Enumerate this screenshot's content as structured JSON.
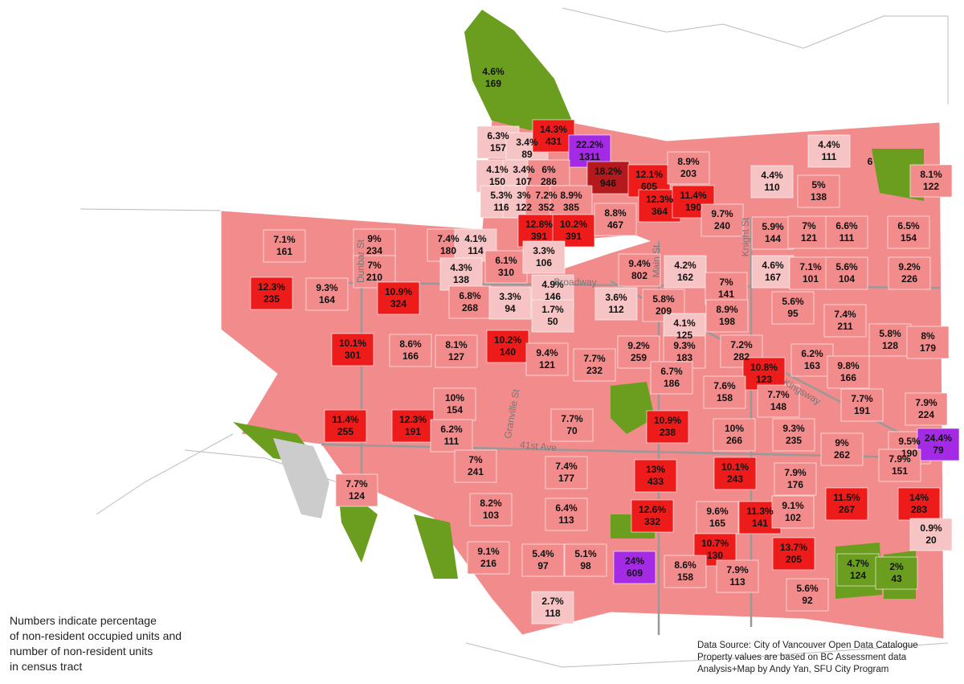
{
  "tracts": [
    {
      "pct": "4.6%",
      "units": 169,
      "color": "#6b9e1e"
    },
    {
      "pct": "6.3%",
      "units": 157,
      "color": "#f6c4c4"
    },
    {
      "pct": "3.4%",
      "units": 89,
      "color": "#f6c4c4"
    },
    {
      "pct": "14.3%",
      "units": 431,
      "color": "#ee1b1b"
    },
    {
      "pct": "22.2%",
      "units": 1311,
      "color": "#a52ae6"
    },
    {
      "pct": "4.1%",
      "units": 150,
      "color": "#f6c4c4"
    },
    {
      "pct": "3.4%",
      "units": 107,
      "color": "#f6c4c4"
    },
    {
      "pct": "6%",
      "units": 286,
      "color": "#f28b8b"
    },
    {
      "pct": "18.2%",
      "units": 946,
      "color": "#b3191d"
    },
    {
      "pct": "12.1%",
      "units": 605,
      "color": "#ee1b1b"
    },
    {
      "pct": "5.3%",
      "units": 116,
      "color": "#f6c4c4"
    },
    {
      "pct": "3%",
      "units": 122,
      "color": "#f6c4c4"
    },
    {
      "pct": "7.2%",
      "units": 352,
      "color": "#f28b8b"
    },
    {
      "pct": "8.9%",
      "units": 385,
      "color": "#f28b8b"
    },
    {
      "pct": "12.3%",
      "units": 364,
      "color": "#ee1b1b"
    },
    {
      "pct": "12.8%",
      "units": 391,
      "color": "#ee1b1b"
    },
    {
      "pct": "10.2%",
      "units": 391,
      "color": "#ee1b1b"
    },
    {
      "pct": "8.8%",
      "units": 467,
      "color": "#f28b8b"
    },
    {
      "pct": "8.9%",
      "units": 203,
      "color": "#f28b8b"
    },
    {
      "pct": "11.4%",
      "units": 190,
      "color": "#ee1b1b"
    },
    {
      "pct": "9.7%",
      "units": 240,
      "color": "#f28b8b"
    },
    {
      "pct": "4.4%",
      "units": 110,
      "color": "#f6c4c4"
    },
    {
      "pct": "4.4%",
      "units": 111,
      "color": "#f6c4c4"
    },
    {
      "pct": "5%",
      "units": 138,
      "color": "#f28b8b"
    },
    {
      "pct": "8.1%",
      "units": 122,
      "color": "#f28b8b"
    },
    {
      "pct": "7.1%",
      "units": 161,
      "color": "#f28b8b"
    },
    {
      "pct": "9%",
      "units": 234,
      "color": "#f28b8b"
    },
    {
      "pct": "7.4%",
      "units": 180,
      "color": "#f28b8b"
    },
    {
      "pct": "4.1%",
      "units": 114,
      "color": "#f6c4c4"
    },
    {
      "pct": "7%",
      "units": 210,
      "color": "#f28b8b"
    },
    {
      "pct": "4.3%",
      "units": 138,
      "color": "#f6c4c4"
    },
    {
      "pct": "6.1%",
      "units": 310,
      "color": "#f28b8b"
    },
    {
      "pct": "3.3%",
      "units": 106,
      "color": "#f6c4c4"
    },
    {
      "pct": "9.4%",
      "units": 802,
      "color": "#f28b8b"
    },
    {
      "pct": "4.2%",
      "units": 162,
      "color": "#f6c4c4"
    },
    {
      "pct": "5.9%",
      "units": 144,
      "color": "#f28b8b"
    },
    {
      "pct": "7%",
      "units": 121,
      "color": "#f28b8b"
    },
    {
      "pct": "6.6%",
      "units": 111,
      "color": "#f28b8b"
    },
    {
      "pct": "6.5%",
      "units": 154,
      "color": "#f28b8b"
    },
    {
      "pct": "4.6%",
      "units": 167,
      "color": "#f6c4c4"
    },
    {
      "pct": "7.1%",
      "units": 101,
      "color": "#f28b8b"
    },
    {
      "pct": "5.6%",
      "units": 104,
      "color": "#f28b8b"
    },
    {
      "pct": "9.2%",
      "units": 226,
      "color": "#f28b8b"
    },
    {
      "pct": "12.3%",
      "units": 235,
      "color": "#ee1b1b"
    },
    {
      "pct": "9.3%",
      "units": 164,
      "color": "#f28b8b"
    },
    {
      "pct": "10.9%",
      "units": 324,
      "color": "#ee1b1b"
    },
    {
      "pct": "6.8%",
      "units": 268,
      "color": "#f28b8b"
    },
    {
      "pct": "3.3%",
      "units": 94,
      "color": "#f6c4c4"
    },
    {
      "pct": "4.9%",
      "units": 146,
      "color": "#f6c4c4"
    },
    {
      "pct": "1.7%",
      "units": 50,
      "color": "#f6c4c4"
    },
    {
      "pct": "3.6%",
      "units": 112,
      "color": "#f6c4c4"
    },
    {
      "pct": "5.8%",
      "units": 209,
      "color": "#f28b8b"
    },
    {
      "pct": "7%",
      "units": 141,
      "color": "#f28b8b"
    },
    {
      "pct": "8.9%",
      "units": 198,
      "color": "#f28b8b"
    },
    {
      "pct": "4.1%",
      "units": 125,
      "color": "#f6c4c4"
    },
    {
      "pct": "5.6%",
      "units": 95,
      "color": "#f28b8b"
    },
    {
      "pct": "7.4%",
      "units": 211,
      "color": "#f28b8b"
    },
    {
      "pct": "10.1%",
      "units": 301,
      "color": "#ee1b1b"
    },
    {
      "pct": "8.6%",
      "units": 166,
      "color": "#f28b8b"
    },
    {
      "pct": "8.1%",
      "units": 127,
      "color": "#f28b8b"
    },
    {
      "pct": "10.2%",
      "units": 140,
      "color": "#ee1b1b"
    },
    {
      "pct": "9.4%",
      "units": 121,
      "color": "#f28b8b"
    },
    {
      "pct": "7.7%",
      "units": 232,
      "color": "#f28b8b"
    },
    {
      "pct": "9.2%",
      "units": 259,
      "color": "#f28b8b"
    },
    {
      "pct": "9.3%",
      "units": 183,
      "color": "#f28b8b"
    },
    {
      "pct": "7.2%",
      "units": 282,
      "color": "#f28b8b"
    },
    {
      "pct": "6.2%",
      "units": 163,
      "color": "#f28b8b"
    },
    {
      "pct": "5.8%",
      "units": 128,
      "color": "#f28b8b"
    },
    {
      "pct": "8%",
      "units": 179,
      "color": "#f28b8b"
    },
    {
      "pct": "9.8%",
      "units": 166,
      "color": "#f28b8b"
    },
    {
      "pct": "10.8%",
      "units": 123,
      "color": "#ee1b1b"
    },
    {
      "pct": "6.7%",
      "units": 186,
      "color": "#f28b8b"
    },
    {
      "pct": "7.6%",
      "units": 158,
      "color": "#f28b8b"
    },
    {
      "pct": "7.7%",
      "units": 148,
      "color": "#f28b8b"
    },
    {
      "pct": "7.7%",
      "units": 191,
      "color": "#f28b8b"
    },
    {
      "pct": "7.9%",
      "units": 224,
      "color": "#f28b8b"
    },
    {
      "pct": "11.4%",
      "units": 255,
      "color": "#ee1b1b"
    },
    {
      "pct": "12.3%",
      "units": 191,
      "color": "#ee1b1b"
    },
    {
      "pct": "10%",
      "units": 154,
      "color": "#f28b8b"
    },
    {
      "pct": "6.2%",
      "units": 111,
      "color": "#f28b8b"
    },
    {
      "pct": "7.7%",
      "units": 70,
      "color": "#f28b8b"
    },
    {
      "pct": "10.9%",
      "units": 238,
      "color": "#ee1b1b"
    },
    {
      "pct": "10%",
      "units": 266,
      "color": "#f28b8b"
    },
    {
      "pct": "9.3%",
      "units": 235,
      "color": "#f28b8b"
    },
    {
      "pct": "9%",
      "units": 262,
      "color": "#f28b8b"
    },
    {
      "pct": "9.5%",
      "units": 190,
      "color": "#f28b8b"
    },
    {
      "pct": "24.4%",
      "units": 79,
      "color": "#a52ae6"
    },
    {
      "pct": "7.9%",
      "units": 151,
      "color": "#f28b8b"
    },
    {
      "pct": "7.7%",
      "units": 124,
      "color": "#f28b8b"
    },
    {
      "pct": "7%",
      "units": 241,
      "color": "#f28b8b"
    },
    {
      "pct": "7.4%",
      "units": 177,
      "color": "#f28b8b"
    },
    {
      "pct": "13%",
      "units": 433,
      "color": "#ee1b1b"
    },
    {
      "pct": "10.1%",
      "units": 243,
      "color": "#ee1b1b"
    },
    {
      "pct": "7.9%",
      "units": 176,
      "color": "#f28b8b"
    },
    {
      "pct": "11.5%",
      "units": 267,
      "color": "#ee1b1b"
    },
    {
      "pct": "14%",
      "units": 283,
      "color": "#ee1b1b"
    },
    {
      "pct": "8.2%",
      "units": 103,
      "color": "#f28b8b"
    },
    {
      "pct": "6.4%",
      "units": 113,
      "color": "#f28b8b"
    },
    {
      "pct": "12.6%",
      "units": 332,
      "color": "#ee1b1b"
    },
    {
      "pct": "9.6%",
      "units": 165,
      "color": "#f28b8b"
    },
    {
      "pct": "11.3%",
      "units": 141,
      "color": "#ee1b1b"
    },
    {
      "pct": "9.1%",
      "units": 102,
      "color": "#f28b8b"
    },
    {
      "pct": "0.9%",
      "units": 20,
      "color": "#f6c4c4"
    },
    {
      "pct": "10.7%",
      "units": 130,
      "color": "#ee1b1b"
    },
    {
      "pct": "13.7%",
      "units": 205,
      "color": "#ee1b1b"
    },
    {
      "pct": "9.1%",
      "units": 216,
      "color": "#f28b8b"
    },
    {
      "pct": "5.4%",
      "units": 97,
      "color": "#f28b8b"
    },
    {
      "pct": "5.1%",
      "units": 98,
      "color": "#f28b8b"
    },
    {
      "pct": "24%",
      "units": 609,
      "color": "#a52ae6"
    },
    {
      "pct": "8.6%",
      "units": 158,
      "color": "#f28b8b"
    },
    {
      "pct": "7.9%",
      "units": 113,
      "color": "#f28b8b"
    },
    {
      "pct": "4.7%",
      "units": 124,
      "color": "#6b9e1e"
    },
    {
      "pct": "2%",
      "units": 43,
      "color": "#6b9e1e"
    },
    {
      "pct": "5.6%",
      "units": 92,
      "color": "#f28b8b"
    },
    {
      "pct": "2.7%",
      "units": 118,
      "color": "#f6c4c4"
    }
  ],
  "fragment": "6",
  "streets": [
    "Dunbar St",
    "Broadway",
    "Main St",
    "Knight St",
    "Kingsway",
    "41st Ave",
    "Granville St"
  ],
  "legend": {
    "lines": [
      "Numbers indicate percentage",
      "of non-resident occupied units and",
      "number of non-resident units",
      "in census tract"
    ]
  },
  "source": {
    "lines": [
      "Data Source: City of Vancouver Open Data Catalogue",
      "Property values are based on BC Assessment data",
      "Analysis+Map by Andy Yan, SFU City Program"
    ]
  }
}
